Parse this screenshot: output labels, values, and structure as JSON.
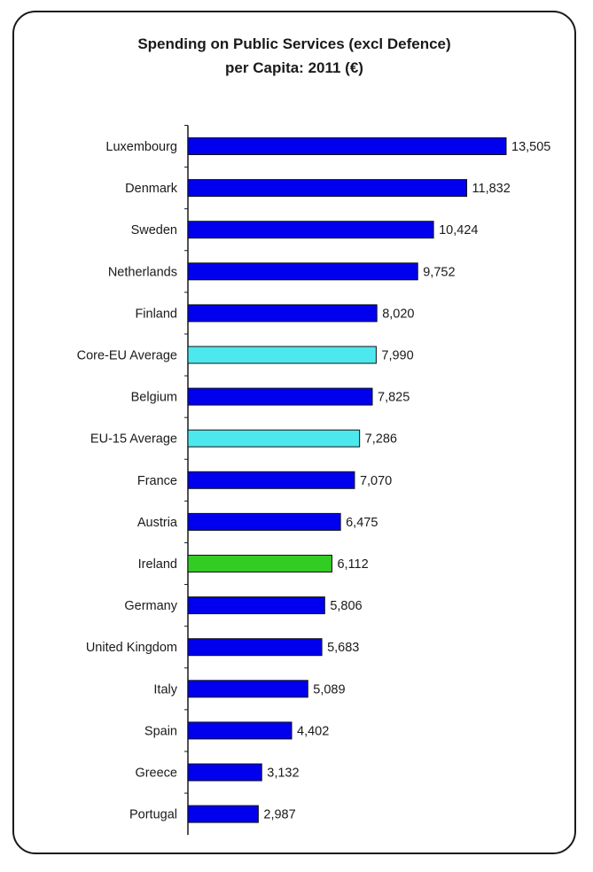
{
  "chart_data": {
    "type": "bar",
    "orientation": "horizontal",
    "title_line1": "Spending on Public Services (excl Defence)",
    "title_line2": "per Capita: 2011 (€)",
    "categories": [
      "Luxembourg",
      "Denmark",
      "Sweden",
      "Netherlands",
      "Finland",
      "Core-EU Average",
      "Belgium",
      "EU-15 Average",
      "France",
      "Austria",
      "Ireland",
      "Germany",
      "United Kingdom",
      "Italy",
      "Spain",
      "Greece",
      "Portugal"
    ],
    "values": [
      13505,
      11832,
      10424,
      9752,
      8020,
      7990,
      7825,
      7286,
      7070,
      6475,
      6112,
      5806,
      5683,
      5089,
      4402,
      3132,
      2987
    ],
    "value_labels": [
      "13,505",
      "11,832",
      "10,424",
      "9,752",
      "8,020",
      "7,990",
      "7,825",
      "7,286",
      "7,070",
      "6,475",
      "6,112",
      "5,806",
      "5,683",
      "5,089",
      "4,402",
      "3,132",
      "2,987"
    ],
    "bar_colors": [
      "#0000ee",
      "#0000ee",
      "#0000ee",
      "#0000ee",
      "#0000ee",
      "#4de8ee",
      "#0000ee",
      "#4de8ee",
      "#0000ee",
      "#0000ee",
      "#33cc22",
      "#0000ee",
      "#0000ee",
      "#0000ee",
      "#0000ee",
      "#0000ee",
      "#0000ee"
    ],
    "xlim": [
      0,
      13505
    ],
    "grid": false,
    "legend": "none"
  }
}
